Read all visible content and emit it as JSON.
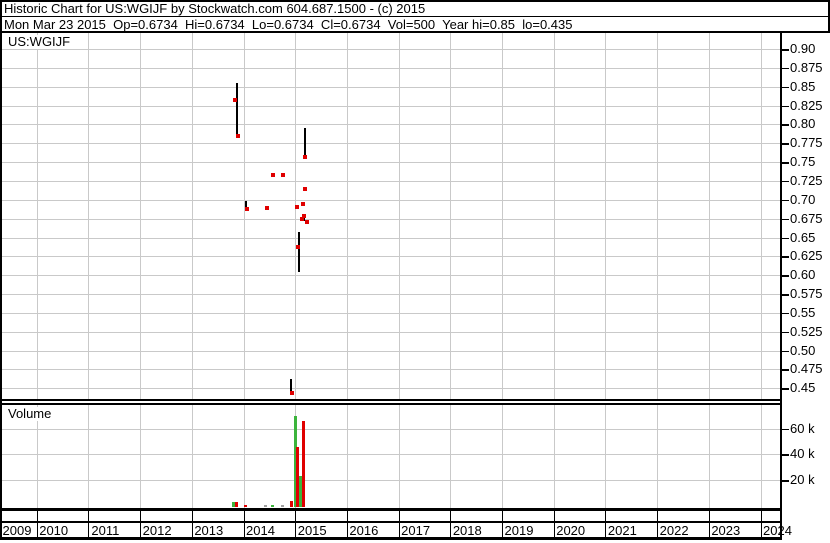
{
  "header": {
    "title": "Historic Chart for US:WGIJF by Stockwatch.com 604.687.1500 - (c) 2015",
    "quote_line": "Mon Mar 23 2015  Op=0.6734  Hi=0.6734  Lo=0.6734  Cl=0.6734  Vol=500  Year hi=0.85  lo=0.435"
  },
  "chart_data": {
    "type": "ohlc",
    "symbol": "US:WGIJF",
    "volume_label": "Volume",
    "legend_position": "none",
    "grid": true,
    "x_axis": {
      "years": [
        "2009",
        "2010",
        "2011",
        "2012",
        "2013",
        "2014",
        "2015",
        "2016",
        "2017",
        "2018",
        "2019",
        "2020",
        "2021",
        "2022",
        "2023",
        "2024"
      ],
      "range": [
        2009,
        2025
      ]
    },
    "price_axis": {
      "ticks": [
        "0.90",
        "0.875",
        "0.85",
        "0.825",
        "0.80",
        "0.775",
        "0.75",
        "0.725",
        "0.70",
        "0.675",
        "0.65",
        "0.625",
        "0.60",
        "0.575",
        "0.55",
        "0.525",
        "0.50",
        "0.475",
        "0.45"
      ],
      "max": 0.9,
      "min": 0.45,
      "step": 0.025
    },
    "volume_axis": {
      "ticks": [
        {
          "v": 60000,
          "label": "60 k"
        },
        {
          "v": 40000,
          "label": "40 k"
        },
        {
          "v": 20000,
          "label": "20 k"
        }
      ],
      "max": 75000
    },
    "range_bars": [
      {
        "t": 2013.87,
        "hi": 0.855,
        "lo": 0.787
      },
      {
        "t": 2014.05,
        "hi": 0.698,
        "lo": 0.686
      },
      {
        "t": 2014.92,
        "hi": 0.462,
        "lo": 0.445
      },
      {
        "t": 2015.07,
        "hi": 0.657,
        "lo": 0.604
      },
      {
        "t": 2015.17,
        "hi": 0.677,
        "lo": 0.672
      },
      {
        "t": 2015.18,
        "hi": 0.795,
        "lo": 0.757
      }
    ],
    "closes": [
      {
        "t": 2013.83,
        "p": 0.833
      },
      {
        "t": 2013.89,
        "p": 0.785
      },
      {
        "t": 2014.07,
        "p": 0.688
      },
      {
        "t": 2014.45,
        "p": 0.689
      },
      {
        "t": 2014.57,
        "p": 0.733
      },
      {
        "t": 2014.76,
        "p": 0.733
      },
      {
        "t": 2014.94,
        "p": 0.444
      },
      {
        "t": 2015.03,
        "p": 0.69
      },
      {
        "t": 2015.05,
        "p": 0.638
      },
      {
        "t": 2015.13,
        "p": 0.675
      },
      {
        "t": 2015.15,
        "p": 0.695
      },
      {
        "t": 2015.17,
        "p": 0.679
      },
      {
        "t": 2015.19,
        "p": 0.714
      },
      {
        "t": 2015.19,
        "p": 0.757
      },
      {
        "t": 2015.23,
        "p": 0.671
      }
    ],
    "volume_bars": [
      {
        "t": 2013.81,
        "v": 3000,
        "c": "up"
      },
      {
        "t": 2013.86,
        "v": 3000,
        "c": "down"
      },
      {
        "t": 2014.03,
        "v": 800,
        "c": "down"
      },
      {
        "t": 2014.43,
        "v": 800,
        "c": "neutral"
      },
      {
        "t": 2014.57,
        "v": 800,
        "c": "up"
      },
      {
        "t": 2014.76,
        "v": 800,
        "c": "neutral"
      },
      {
        "t": 2014.92,
        "v": 3500,
        "c": "down"
      },
      {
        "t": 2015.01,
        "v": 70000,
        "c": "up"
      },
      {
        "t": 2015.05,
        "v": 46000,
        "c": "down"
      },
      {
        "t": 2015.1,
        "v": 23000,
        "c": "up"
      },
      {
        "t": 2015.17,
        "v": 66000,
        "c": "down"
      }
    ],
    "colors": {
      "up": "#3cb43c",
      "down": "#e00000",
      "neutral": "#a0a0a0",
      "grid": "#c9c9c9",
      "mark": "#000000",
      "close_dot": "#e00000"
    }
  }
}
